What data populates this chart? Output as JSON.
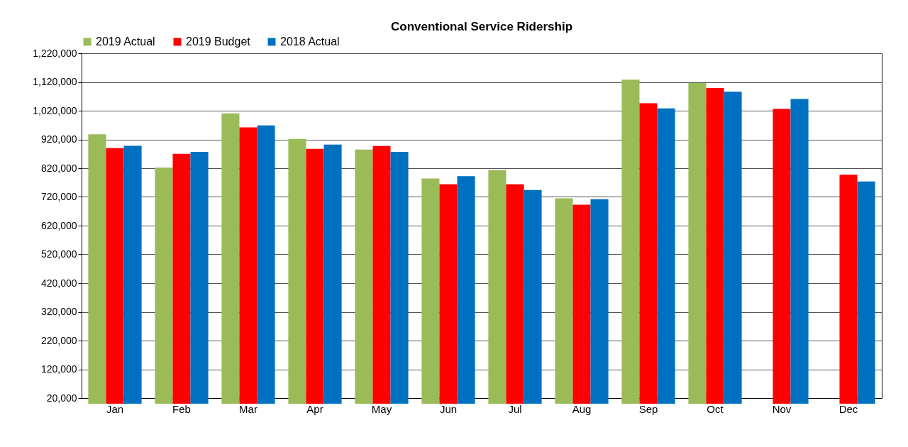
{
  "chart_data": {
    "type": "bar",
    "title": "Conventional Service Ridership",
    "categories": [
      "Jan",
      "Feb",
      "Mar",
      "Apr",
      "May",
      "Jun",
      "Jul",
      "Aug",
      "Sep",
      "Oct",
      "Nov",
      "Dec"
    ],
    "series": [
      {
        "name": "2019 Actual",
        "color": "#9bbb59",
        "values": [
          938000,
          822000,
          1011000,
          922000,
          885000,
          784000,
          813000,
          715000,
          1128000,
          1116000,
          null,
          null
        ]
      },
      {
        "name": "2019 Budget",
        "color": "#ff0000",
        "values": [
          890000,
          870000,
          962000,
          887000,
          897000,
          764000,
          764000,
          693000,
          1046000,
          1099000,
          1026000,
          797000
        ]
      },
      {
        "name": "2018 Actual",
        "color": "#0070c0",
        "values": [
          898000,
          877000,
          969000,
          902000,
          877000,
          792000,
          744000,
          712000,
          1028000,
          1086000,
          1061000,
          774000
        ]
      }
    ],
    "ylim": [
      20000,
      1220000
    ],
    "yticks": [
      {
        "value": 20000,
        "label": "20,000"
      },
      {
        "value": 120000,
        "label": "120,000"
      },
      {
        "value": 220000,
        "label": "220,000"
      },
      {
        "value": 320000,
        "label": "320,000"
      },
      {
        "value": 420000,
        "label": "420,000"
      },
      {
        "value": 520000,
        "label": "520,000"
      },
      {
        "value": 620000,
        "label": "620,000"
      },
      {
        "value": 720000,
        "label": "720,000"
      },
      {
        "value": 820000,
        "label": "820,000"
      },
      {
        "value": 920000,
        "label": "920,000"
      },
      {
        "value": 1020000,
        "label": "1,020,000"
      },
      {
        "value": 1120000,
        "label": "1,120,000"
      },
      {
        "value": 1220000,
        "label": "1,220,000"
      }
    ],
    "grid": "y",
    "legend": "top"
  }
}
